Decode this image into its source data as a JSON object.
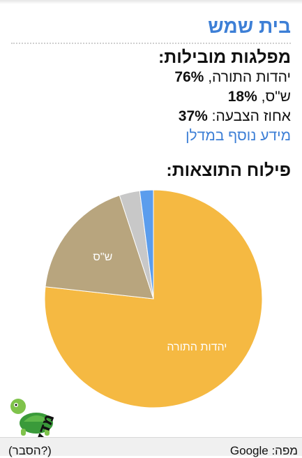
{
  "header": {
    "title": "בית שמש"
  },
  "parties": {
    "heading": "מפלגות מובילות:",
    "items": [
      {
        "name": "יהדות התורה,",
        "percent": "76%",
        "value": 76
      },
      {
        "name": "ש\"ס,",
        "percent": "18%",
        "value": 18
      }
    ],
    "turnout_label": "אחוז הצבעה:",
    "turnout_value": "37%",
    "more_info_link": "מידע נוסף במדלן"
  },
  "chart_section": {
    "heading": "פילוח התוצאות:"
  },
  "chart_data": {
    "type": "pie",
    "slices": [
      {
        "label": "יהדות התורה",
        "value": 76,
        "color": "#f5b942"
      },
      {
        "label": "ש\"ס",
        "value": 18,
        "color": "#b8a57e"
      },
      {
        "label": "",
        "value": 3,
        "color": "#c8c8c8"
      },
      {
        "label": "",
        "value": 2,
        "color": "#5b9ded"
      }
    ]
  },
  "footer": {
    "map_label": "מפה: Google",
    "help_link": "(הסבר?)"
  },
  "logo": {
    "text": "מדלן"
  }
}
